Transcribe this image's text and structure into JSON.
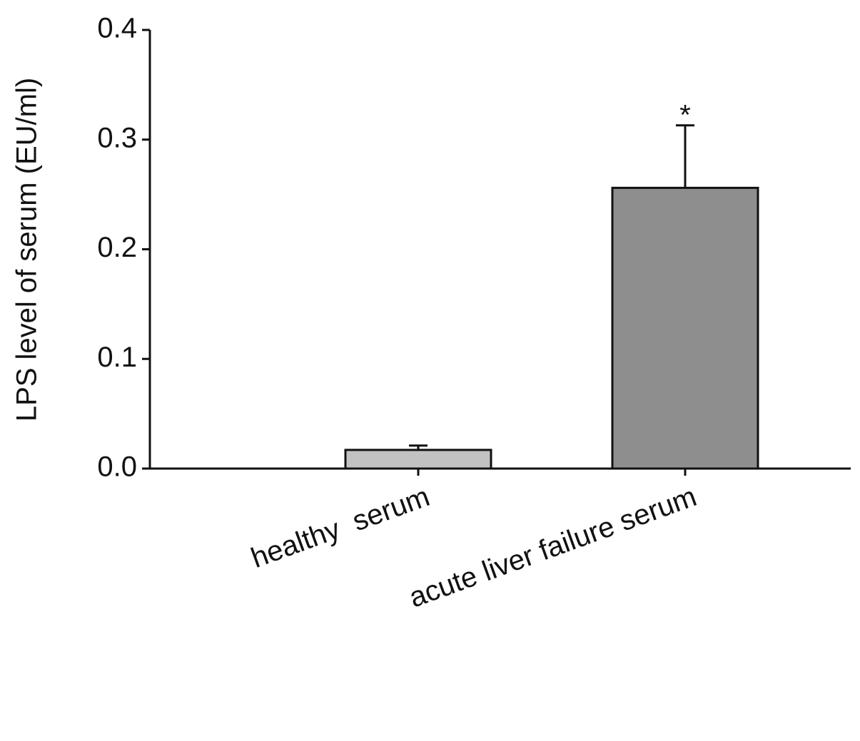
{
  "chart_data": {
    "type": "bar",
    "y_label": "LPS level of serum (EU/ml)",
    "categories": [
      "healthy  serum",
      "acute liver failure serum"
    ],
    "values": [
      0.017,
      0.256
    ],
    "errors": [
      0.004,
      0.057
    ],
    "colors": [
      "#c2c2c2",
      "#8e8e8e"
    ],
    "annotation": "*",
    "ylim": [
      0,
      0.4
    ],
    "yticks": [
      {
        "value": 0,
        "label": "0.0"
      },
      0.1,
      0.2,
      0.3,
      0.4
    ],
    "grid": false
  }
}
